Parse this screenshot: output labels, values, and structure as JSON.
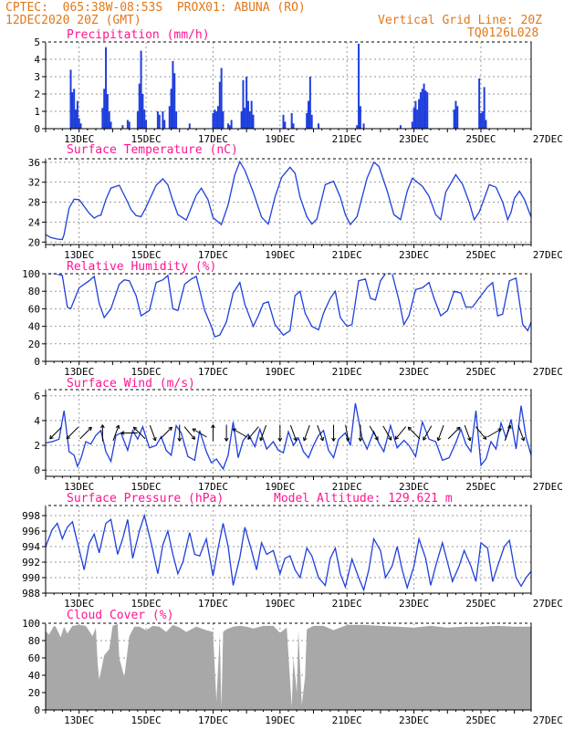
{
  "header": {
    "line1": "CPTEC:  065:38W-08:53S  PROX01: ABUNA (RO)",
    "line2": "12DEC2020 20Z (GMT)",
    "grid_note": "Vertical Grid Line: 20Z",
    "run_id": "TQ0126L028"
  },
  "colors": {
    "header": "#e07818",
    "panel_title": "#ff1493",
    "series": "#1f3fdc",
    "cloud": "#a8a8a8",
    "grid": "#9a9a9a"
  },
  "x_tick_labels": [
    "13DEC",
    "15DEC",
    "17DEC",
    "19DEC",
    "21DEC",
    "23DEC",
    "25DEC",
    "27DEC"
  ],
  "chart_data": [
    {
      "type": "bar",
      "title": "Precipitation (mm/h)",
      "ylim": [
        0,
        5
      ],
      "yticks": [
        0,
        1,
        2,
        3,
        4,
        5
      ],
      "xlim": [
        0,
        14.5
      ],
      "bars": [
        [
          0.75,
          3.4
        ],
        [
          0.8,
          2.1
        ],
        [
          0.85,
          2.3
        ],
        [
          0.9,
          1.1
        ],
        [
          0.95,
          1.6
        ],
        [
          1.0,
          0.6
        ],
        [
          1.05,
          0.3
        ],
        [
          1.7,
          1.2
        ],
        [
          1.75,
          2.3
        ],
        [
          1.8,
          4.7
        ],
        [
          1.85,
          2.0
        ],
        [
          1.9,
          1.0
        ],
        [
          1.95,
          0.4
        ],
        [
          2.3,
          0.2
        ],
        [
          2.45,
          0.5
        ],
        [
          2.5,
          0.4
        ],
        [
          2.75,
          1.0
        ],
        [
          2.8,
          2.6
        ],
        [
          2.85,
          4.5
        ],
        [
          2.9,
          2.0
        ],
        [
          2.95,
          1.1
        ],
        [
          3.0,
          0.5
        ],
        [
          3.35,
          1.0
        ],
        [
          3.4,
          0.8
        ],
        [
          3.5,
          1.0
        ],
        [
          3.55,
          0.5
        ],
        [
          3.7,
          1.3
        ],
        [
          3.75,
          2.3
        ],
        [
          3.8,
          3.9
        ],
        [
          3.85,
          3.2
        ],
        [
          3.9,
          1.0
        ],
        [
          4.3,
          0.3
        ],
        [
          5.0,
          0.9
        ],
        [
          5.05,
          1.1
        ],
        [
          5.1,
          1.0
        ],
        [
          5.15,
          1.3
        ],
        [
          5.2,
          2.7
        ],
        [
          5.25,
          3.5
        ],
        [
          5.3,
          1.0
        ],
        [
          5.45,
          0.3
        ],
        [
          5.5,
          0.2
        ],
        [
          5.55,
          0.5
        ],
        [
          5.85,
          1.0
        ],
        [
          5.9,
          2.8
        ],
        [
          5.95,
          1.2
        ],
        [
          6.0,
          3.0
        ],
        [
          6.05,
          1.6
        ],
        [
          6.1,
          1.0
        ],
        [
          6.15,
          1.6
        ],
        [
          6.2,
          0.8
        ],
        [
          7.1,
          0.8
        ],
        [
          7.15,
          0.4
        ],
        [
          7.35,
          0.9
        ],
        [
          7.4,
          0.3
        ],
        [
          7.8,
          0.9
        ],
        [
          7.85,
          1.6
        ],
        [
          7.9,
          3.0
        ],
        [
          7.95,
          0.8
        ],
        [
          8.15,
          0.3
        ],
        [
          9.3,
          0.2
        ],
        [
          9.35,
          4.9
        ],
        [
          9.4,
          1.3
        ],
        [
          9.5,
          0.3
        ],
        [
          10.6,
          0.2
        ],
        [
          10.95,
          0.4
        ],
        [
          11.0,
          1.2
        ],
        [
          11.05,
          1.6
        ],
        [
          11.1,
          1.1
        ],
        [
          11.15,
          1.7
        ],
        [
          11.2,
          2.1
        ],
        [
          11.25,
          2.3
        ],
        [
          11.3,
          2.6
        ],
        [
          11.35,
          2.2
        ],
        [
          11.4,
          2.1
        ],
        [
          12.2,
          1.1
        ],
        [
          12.25,
          1.6
        ],
        [
          12.3,
          1.3
        ],
        [
          12.95,
          2.9
        ],
        [
          13.0,
          0.9
        ],
        [
          13.05,
          1.0
        ],
        [
          13.1,
          2.4
        ],
        [
          13.15,
          0.5
        ]
      ]
    },
    {
      "type": "line",
      "title": "Surface Temperature (nC)",
      "ylim": [
        19.5,
        36.7
      ],
      "yticks": [
        20,
        24,
        28,
        32,
        36
      ],
      "xlim": [
        0,
        14.5
      ],
      "x": [
        0,
        0.15,
        0.35,
        0.5,
        0.55,
        0.7,
        0.85,
        1.0,
        1.3,
        1.45,
        1.55,
        1.65,
        1.8,
        1.95,
        2.2,
        2.45,
        2.55,
        2.7,
        2.85,
        3.0,
        3.3,
        3.5,
        3.65,
        3.8,
        3.95,
        4.2,
        4.5,
        4.65,
        4.85,
        5.0,
        5.25,
        5.45,
        5.65,
        5.8,
        5.95,
        6.2,
        6.45,
        6.65,
        6.85,
        7.05,
        7.3,
        7.45,
        7.6,
        7.8,
        7.95,
        8.1,
        8.35,
        8.6,
        8.8,
        8.95,
        9.1,
        9.3,
        9.6,
        9.8,
        9.95,
        10.2,
        10.4,
        10.6,
        10.8,
        10.95,
        11.25,
        11.45,
        11.65,
        11.8,
        11.95,
        12.25,
        12.45,
        12.65,
        12.8,
        12.95,
        13.25,
        13.45,
        13.65,
        13.8,
        13.9,
        14.0,
        14.15,
        14.3,
        14.5
      ],
      "y": [
        21.5,
        20.9,
        20.6,
        20.5,
        21.5,
        26.8,
        28.6,
        28.5,
        25.8,
        24.8,
        25.2,
        25.4,
        28.5,
        30.8,
        31.4,
        28.0,
        26.5,
        25.3,
        25.1,
        27.0,
        31.4,
        32.7,
        31.5,
        28.3,
        25.5,
        24.4,
        29.4,
        30.8,
        28.5,
        24.9,
        23.5,
        27.5,
        33.5,
        36.1,
        34.4,
        30.0,
        25.0,
        23.6,
        29.0,
        33.0,
        35.0,
        33.8,
        29.0,
        25.1,
        23.6,
        24.6,
        31.5,
        32.2,
        29.0,
        25.5,
        23.5,
        25.1,
        32.8,
        36.0,
        35.2,
        30.3,
        25.5,
        24.5,
        30.2,
        32.8,
        31.2,
        29.2,
        25.5,
        24.5,
        30.0,
        33.5,
        31.6,
        28.0,
        24.5,
        26.0,
        31.5,
        31.0,
        28.0,
        24.5,
        26.0,
        28.8,
        30.2,
        28.5,
        25.0
      ]
    },
    {
      "type": "line",
      "title": "Relative Humidity (%)",
      "ylim": [
        0,
        100
      ],
      "yticks": [
        0,
        20,
        40,
        60,
        80,
        100
      ],
      "xlim": [
        0,
        14.5
      ],
      "x": [
        0,
        0.3,
        0.5,
        0.65,
        0.75,
        1.0,
        1.3,
        1.45,
        1.6,
        1.75,
        1.95,
        2.2,
        2.35,
        2.5,
        2.7,
        2.85,
        3.1,
        3.3,
        3.5,
        3.65,
        3.8,
        3.95,
        4.15,
        4.35,
        4.5,
        4.75,
        4.95,
        5.05,
        5.2,
        5.4,
        5.6,
        5.8,
        5.95,
        6.2,
        6.35,
        6.5,
        6.65,
        6.85,
        7.1,
        7.3,
        7.45,
        7.6,
        7.75,
        7.95,
        8.15,
        8.3,
        8.5,
        8.65,
        8.8,
        9.0,
        9.15,
        9.35,
        9.55,
        9.7,
        9.85,
        10.0,
        10.15,
        10.35,
        10.55,
        10.7,
        10.85,
        11.05,
        11.25,
        11.45,
        11.6,
        11.8,
        12.0,
        12.2,
        12.4,
        12.55,
        12.75,
        13.0,
        13.2,
        13.35,
        13.5,
        13.65,
        13.85,
        14.05,
        14.25,
        14.4,
        14.5
      ],
      "y": [
        100,
        100,
        98,
        62,
        60,
        84,
        92,
        97,
        66,
        50,
        60,
        88,
        93,
        92,
        75,
        52,
        58,
        90,
        93,
        98,
        60,
        58,
        88,
        94,
        97,
        58,
        40,
        28,
        30,
        45,
        78,
        90,
        65,
        40,
        52,
        66,
        68,
        42,
        30,
        35,
        75,
        80,
        55,
        40,
        36,
        55,
        72,
        80,
        50,
        40,
        42,
        92,
        94,
        72,
        70,
        92,
        100,
        100,
        70,
        42,
        52,
        82,
        84,
        90,
        72,
        52,
        58,
        80,
        78,
        62,
        62,
        75,
        85,
        90,
        52,
        54,
        92,
        95,
        42,
        35,
        45
      ]
    },
    {
      "type": "line",
      "title": "Surface Wind (m/s)",
      "ylim": [
        -0.5,
        6.5
      ],
      "yticks": [
        0,
        2,
        4,
        6
      ],
      "xlim": [
        0,
        14.5
      ],
      "x": [
        0,
        0.2,
        0.4,
        0.55,
        0.7,
        0.85,
        0.95,
        1.05,
        1.2,
        1.35,
        1.5,
        1.65,
        1.8,
        1.95,
        2.1,
        2.25,
        2.45,
        2.6,
        2.75,
        2.9,
        3.1,
        3.3,
        3.45,
        3.6,
        3.75,
        3.9,
        4.05,
        4.25,
        4.45,
        4.6,
        4.8,
        4.95,
        5.1,
        5.3,
        5.45,
        5.6,
        5.75,
        5.9,
        6.05,
        6.25,
        6.4,
        6.6,
        6.8,
        6.95,
        7.1,
        7.25,
        7.4,
        7.55,
        7.7,
        7.85,
        8.0,
        8.15,
        8.3,
        8.45,
        8.6,
        8.75,
        8.95,
        9.1,
        9.25,
        9.45,
        9.6,
        9.8,
        9.95,
        10.1,
        10.3,
        10.5,
        10.7,
        10.85,
        11.05,
        11.25,
        11.45,
        11.65,
        11.85,
        12.05,
        12.25,
        12.4,
        12.55,
        12.7,
        12.85,
        13.0,
        13.15,
        13.3,
        13.45,
        13.6,
        13.75,
        13.9,
        14.05,
        14.2,
        14.35,
        14.5
      ],
      "y": [
        2.2,
        2.3,
        2.5,
        4.8,
        1.5,
        1.2,
        0.3,
        0.9,
        2.3,
        2.1,
        2.8,
        3.2,
        1.5,
        0.7,
        2.8,
        3.0,
        1.6,
        3.2,
        2.5,
        3.5,
        1.8,
        2.0,
        2.7,
        1.6,
        1.2,
        3.6,
        3.0,
        1.1,
        0.8,
        3.2,
        1.5,
        0.6,
        0.9,
        0.1,
        1.2,
        3.9,
        1.0,
        2.4,
        2.9,
        1.9,
        3.3,
        1.7,
        2.3,
        1.6,
        1.4,
        3.1,
        2.0,
        2.6,
        1.5,
        1.0,
        2.0,
        2.8,
        3.2,
        1.6,
        1.0,
        2.5,
        3.0,
        2.0,
        5.4,
        2.6,
        1.7,
        3.1,
        2.2,
        1.5,
        3.6,
        1.8,
        2.4,
        2.0,
        1.1,
        3.9,
        2.5,
        2.3,
        0.8,
        1.0,
        2.2,
        3.3,
        2.1,
        1.5,
        4.8,
        0.4,
        0.9,
        2.3,
        1.7,
        3.8,
        2.6,
        4.1,
        1.7,
        5.2,
        2.6,
        1.2
      ]
    },
    {
      "type": "line",
      "title": "Surface Pressure (hPa)",
      "annotation": "Model Altitude: 129.621 m",
      "ylim": [
        988,
        999.3
      ],
      "yticks": [
        988,
        990,
        992,
        994,
        996,
        998
      ],
      "xlim": [
        0,
        14.5
      ],
      "x": [
        0,
        0.2,
        0.35,
        0.5,
        0.65,
        0.8,
        0.95,
        1.15,
        1.3,
        1.45,
        1.6,
        1.8,
        1.95,
        2.15,
        2.3,
        2.45,
        2.6,
        2.8,
        2.95,
        3.15,
        3.35,
        3.5,
        3.65,
        3.8,
        3.95,
        4.1,
        4.3,
        4.45,
        4.6,
        4.8,
        5.0,
        5.15,
        5.3,
        5.45,
        5.6,
        5.8,
        5.95,
        6.15,
        6.3,
        6.45,
        6.6,
        6.8,
        7.0,
        7.15,
        7.3,
        7.45,
        7.6,
        7.8,
        7.95,
        8.15,
        8.35,
        8.5,
        8.65,
        8.8,
        8.95,
        9.15,
        9.35,
        9.5,
        9.65,
        9.8,
        10.0,
        10.15,
        10.35,
        10.5,
        10.65,
        10.8,
        11.0,
        11.15,
        11.35,
        11.5,
        11.65,
        11.85,
        12.0,
        12.15,
        12.35,
        12.5,
        12.7,
        12.85,
        13.0,
        13.2,
        13.35,
        13.5,
        13.7,
        13.85,
        14.05,
        14.2,
        14.35,
        14.5
      ],
      "y": [
        994,
        996.2,
        997,
        995,
        996.5,
        997.2,
        994.5,
        991,
        994.4,
        995.6,
        993.2,
        997,
        997.5,
        993,
        995,
        997.5,
        992.5,
        996,
        998,
        994.5,
        990.5,
        994.2,
        996,
        993,
        990.5,
        992,
        995.8,
        993,
        992.8,
        995,
        990.2,
        993.8,
        997,
        994,
        989,
        992.6,
        996.5,
        993.5,
        991,
        994.5,
        993,
        993.5,
        990.5,
        992.5,
        992.8,
        991,
        990,
        993.8,
        992.8,
        990,
        989,
        992.5,
        993.8,
        990.5,
        988.8,
        992.4,
        990,
        988.4,
        991,
        995,
        993.5,
        990,
        991.5,
        994,
        991,
        988.7,
        991.5,
        995,
        992.5,
        989,
        991.5,
        994.5,
        992,
        989.5,
        991.5,
        993.5,
        991.5,
        989.5,
        994.5,
        993.8,
        989.5,
        991.5,
        994,
        994.8,
        990,
        988.9,
        990,
        990.8
      ]
    },
    {
      "type": "area",
      "title": "Cloud Cover (%)",
      "ylim": [
        0,
        100
      ],
      "yticks": [
        0,
        20,
        40,
        60,
        80,
        100
      ],
      "xlim": [
        0,
        14.5
      ],
      "x": [
        0,
        0.1,
        0.25,
        0.3,
        0.45,
        0.55,
        0.65,
        0.8,
        1.0,
        1.2,
        1.4,
        1.5,
        1.55,
        1.6,
        1.75,
        1.9,
        2.0,
        2.15,
        2.2,
        2.35,
        2.5,
        2.65,
        2.8,
        3.0,
        3.2,
        3.4,
        3.6,
        3.8,
        4.0,
        4.2,
        4.5,
        4.8,
        5.0,
        5.1,
        5.2,
        5.25,
        5.3,
        5.4,
        5.6,
        5.8,
        6.0,
        6.2,
        6.5,
        6.8,
        7.0,
        7.2,
        7.35,
        7.4,
        7.5,
        7.55,
        7.65,
        7.75,
        7.8,
        8.0,
        8.3,
        8.6,
        9.0,
        9.5,
        10.0,
        10.5,
        11.0,
        11.5,
        12.0,
        12.5,
        13.0,
        13.5,
        14.0,
        14.5
      ],
      "y": [
        91,
        87,
        97,
        96,
        84,
        96,
        88,
        97,
        98,
        97,
        85,
        95,
        55,
        35,
        63,
        70,
        97,
        99,
        60,
        38,
        85,
        96,
        96,
        92,
        97,
        96,
        90,
        98,
        95,
        90,
        96,
        92,
        90,
        10,
        86,
        2,
        90,
        93,
        96,
        97,
        96,
        94,
        97,
        97,
        89,
        95,
        3,
        60,
        20,
        92,
        6,
        38,
        93,
        97,
        97,
        92,
        98,
        98,
        97,
        96,
        95,
        97,
        95,
        96,
        96,
        97,
        96,
        96
      ]
    }
  ],
  "wind_arrows": [
    {
      "x": 0.3,
      "dir": 225
    },
    {
      "x": 0.8,
      "dir": 225
    },
    {
      "x": 1.2,
      "dir": 45
    },
    {
      "x": 1.7,
      "dir": 0
    },
    {
      "x": 2.1,
      "dir": 20
    },
    {
      "x": 2.5,
      "dir": 270
    },
    {
      "x": 2.8,
      "dir": 315
    },
    {
      "x": 3.2,
      "dir": 160
    },
    {
      "x": 3.6,
      "dir": 45
    },
    {
      "x": 4.0,
      "dir": 180
    },
    {
      "x": 4.3,
      "dir": 140
    },
    {
      "x": 4.6,
      "dir": 300
    },
    {
      "x": 5.0,
      "dir": 0
    },
    {
      "x": 5.4,
      "dir": 180
    },
    {
      "x": 5.8,
      "dir": 300
    },
    {
      "x": 6.2,
      "dir": 220
    },
    {
      "x": 6.5,
      "dir": 200
    },
    {
      "x": 7.0,
      "dir": 180
    },
    {
      "x": 7.4,
      "dir": 160
    },
    {
      "x": 7.8,
      "dir": 200
    },
    {
      "x": 8.2,
      "dir": 160
    },
    {
      "x": 8.6,
      "dir": 180
    },
    {
      "x": 9.0,
      "dir": 170
    },
    {
      "x": 9.4,
      "dir": 180
    },
    {
      "x": 9.8,
      "dir": 150
    },
    {
      "x": 10.2,
      "dir": 150
    },
    {
      "x": 10.6,
      "dir": 220
    },
    {
      "x": 11.0,
      "dir": 315
    },
    {
      "x": 11.4,
      "dir": 210
    },
    {
      "x": 11.8,
      "dir": 200
    },
    {
      "x": 12.2,
      "dir": 45
    },
    {
      "x": 12.6,
      "dir": 160
    },
    {
      "x": 13.0,
      "dir": 140
    },
    {
      "x": 13.4,
      "dir": 60
    },
    {
      "x": 13.8,
      "dir": 20
    },
    {
      "x": 14.2,
      "dir": 160
    }
  ]
}
